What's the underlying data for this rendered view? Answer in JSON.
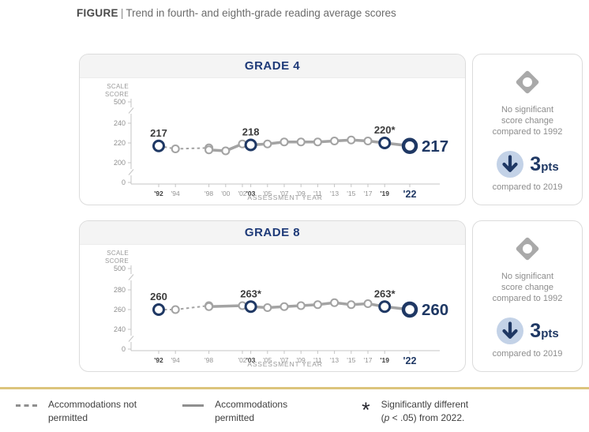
{
  "page": {
    "title_label": "FIGURE",
    "title_separator": "|",
    "title_text": "Trend in fourth- and eighth-grade reading average scores"
  },
  "colors": {
    "accent_navy": "#1f3864",
    "header_navy": "#1e3a78",
    "line_gray": "#a3a3a3",
    "axis_gray": "#c4c4c4",
    "gold_rule": "#dcc47c",
    "arrow_circle_blue": "#c3d2e7"
  },
  "panels": [
    {
      "header": "GRADE 4",
      "scale_label_line1": "SCALE",
      "scale_label_line2": "SCORE",
      "x_axis_title": "ASSESSMENT YEAR"
    },
    {
      "header": "GRADE 8",
      "scale_label_line1": "SCALE",
      "scale_label_line2": "SCORE",
      "x_axis_title": "ASSESSMENT YEAR"
    }
  ],
  "side_cards": [
    {
      "no_change_lines": [
        "No significant",
        "score change",
        "compared to 1992"
      ],
      "change_value": "3",
      "change_unit": "pts",
      "change_direction": "down",
      "change_caption": "compared to 2019"
    },
    {
      "no_change_lines": [
        "No significant",
        "score change",
        "compared to 1992"
      ],
      "change_value": "3",
      "change_unit": "pts",
      "change_direction": "down",
      "change_caption": "compared to 2019"
    }
  ],
  "legend": {
    "not_permitted_line1": "Accommodations not",
    "not_permitted_line2": "permitted",
    "permitted_line1": "Accommodations",
    "permitted_line2": "permitted",
    "asterisk": "*",
    "significant_line1": "Significantly different",
    "significant_prefix": "(",
    "significant_italic": "p",
    "significant_suffix": " < .05) from 2022."
  },
  "chart_data": [
    {
      "type": "line",
      "title": "GRADE 4",
      "ylabel": "SCALE SCORE",
      "xlabel": "ASSESSMENT YEAR",
      "y_ticks": [
        500,
        240,
        220,
        200,
        0
      ],
      "axis_breaks": true,
      "x_ticks": [
        {
          "year": 1992,
          "label": "'92",
          "style": "bold"
        },
        {
          "year": 1994,
          "label": "'94",
          "style": "normal"
        },
        {
          "year": 1998,
          "label": "'98",
          "style": "normal"
        },
        {
          "year": 2000,
          "label": "'00",
          "style": "normal"
        },
        {
          "year": 2002,
          "label": "'02",
          "style": "normal"
        },
        {
          "year": 2003,
          "label": "'03",
          "style": "bold"
        },
        {
          "year": 2005,
          "label": "'05",
          "style": "normal"
        },
        {
          "year": 2007,
          "label": "'07",
          "style": "normal"
        },
        {
          "year": 2009,
          "label": "'09",
          "style": "normal"
        },
        {
          "year": 2011,
          "label": "'11",
          "style": "normal"
        },
        {
          "year": 2013,
          "label": "'13",
          "style": "normal"
        },
        {
          "year": 2015,
          "label": "'15",
          "style": "normal"
        },
        {
          "year": 2017,
          "label": "'17",
          "style": "normal"
        },
        {
          "year": 2019,
          "label": "'19",
          "style": "bold"
        },
        {
          "year": 2022,
          "label": "'22",
          "style": "accent"
        }
      ],
      "series": [
        {
          "name": "Accommodations not permitted",
          "style": "dashed",
          "points": [
            {
              "year": 1992,
              "value": 217
            },
            {
              "year": 1994,
              "value": 214
            },
            {
              "year": 1998,
              "value": 215
            }
          ]
        },
        {
          "name": "Accommodations permitted",
          "style": "solid",
          "points": [
            {
              "year": 1998,
              "value": 213
            },
            {
              "year": 2000,
              "value": 212
            },
            {
              "year": 2002,
              "value": 219
            },
            {
              "year": 2003,
              "value": 218
            },
            {
              "year": 2005,
              "value": 219
            },
            {
              "year": 2007,
              "value": 221
            },
            {
              "year": 2009,
              "value": 221
            },
            {
              "year": 2011,
              "value": 221
            },
            {
              "year": 2013,
              "value": 222
            },
            {
              "year": 2015,
              "value": 223
            },
            {
              "year": 2017,
              "value": 222
            },
            {
              "year": 2019,
              "value": 220
            },
            {
              "year": 2022,
              "value": 217
            }
          ]
        }
      ],
      "annotations": [
        {
          "year": 1992,
          "text": "217",
          "placement": "above"
        },
        {
          "year": 2003,
          "text": "218",
          "placement": "above"
        },
        {
          "year": 2019,
          "text": "220*",
          "placement": "above"
        },
        {
          "year": 2022,
          "text": "217",
          "placement": "right"
        }
      ]
    },
    {
      "type": "line",
      "title": "GRADE 8",
      "ylabel": "SCALE SCORE",
      "xlabel": "ASSESSMENT YEAR",
      "y_ticks": [
        500,
        280,
        260,
        240,
        0
      ],
      "axis_breaks": true,
      "x_ticks": [
        {
          "year": 1992,
          "label": "'92",
          "style": "bold"
        },
        {
          "year": 1994,
          "label": "'94",
          "style": "normal"
        },
        {
          "year": 1998,
          "label": "'98",
          "style": "normal"
        },
        {
          "year": 2002,
          "label": "'02",
          "style": "normal"
        },
        {
          "year": 2003,
          "label": "'03",
          "style": "bold"
        },
        {
          "year": 2005,
          "label": "'05",
          "style": "normal"
        },
        {
          "year": 2007,
          "label": "'07",
          "style": "normal"
        },
        {
          "year": 2009,
          "label": "'09",
          "style": "normal"
        },
        {
          "year": 2011,
          "label": "'11",
          "style": "normal"
        },
        {
          "year": 2013,
          "label": "'13",
          "style": "normal"
        },
        {
          "year": 2015,
          "label": "'15",
          "style": "normal"
        },
        {
          "year": 2017,
          "label": "'17",
          "style": "normal"
        },
        {
          "year": 2019,
          "label": "'19",
          "style": "bold"
        },
        {
          "year": 2022,
          "label": "'22",
          "style": "accent"
        }
      ],
      "series": [
        {
          "name": "Accommodations not permitted",
          "style": "dashed",
          "points": [
            {
              "year": 1992,
              "value": 260
            },
            {
              "year": 1994,
              "value": 260
            },
            {
              "year": 1998,
              "value": 264
            }
          ]
        },
        {
          "name": "Accommodations permitted",
          "style": "solid",
          "points": [
            {
              "year": 1998,
              "value": 263
            },
            {
              "year": 2002,
              "value": 264
            },
            {
              "year": 2003,
              "value": 263
            },
            {
              "year": 2005,
              "value": 262
            },
            {
              "year": 2007,
              "value": 263
            },
            {
              "year": 2009,
              "value": 264
            },
            {
              "year": 2011,
              "value": 265
            },
            {
              "year": 2013,
              "value": 267
            },
            {
              "year": 2015,
              "value": 265
            },
            {
              "year": 2017,
              "value": 266
            },
            {
              "year": 2019,
              "value": 263
            },
            {
              "year": 2022,
              "value": 260
            }
          ]
        }
      ],
      "annotations": [
        {
          "year": 1992,
          "text": "260",
          "placement": "above"
        },
        {
          "year": 2003,
          "text": "263*",
          "placement": "above"
        },
        {
          "year": 2019,
          "text": "263*",
          "placement": "above"
        },
        {
          "year": 2022,
          "text": "260",
          "placement": "right"
        }
      ]
    }
  ]
}
